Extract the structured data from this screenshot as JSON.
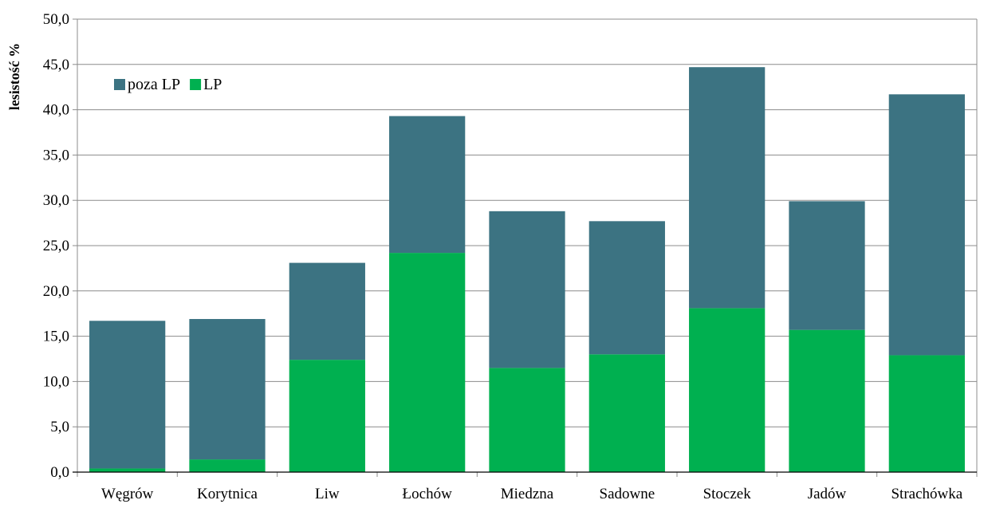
{
  "chart_data": {
    "type": "bar",
    "stacked": true,
    "ylabel": "lesistość %",
    "xlabel": "",
    "ylim": [
      0,
      50
    ],
    "ytick_step": 5,
    "yticks": [
      "0,0",
      "5,0",
      "10,0",
      "15,0",
      "20,0",
      "25,0",
      "30,0",
      "35,0",
      "40,0",
      "45,0",
      "50,0"
    ],
    "grid": true,
    "legend_position": "top-left",
    "categories": [
      "Węgrów",
      "Korytnica",
      "Liw",
      "Łochów",
      "Miedzna",
      "Sadowne",
      "Stoczek",
      "Jadów",
      "Strachówka"
    ],
    "series": [
      {
        "name": "LP",
        "color": "#00b050",
        "values": [
          0.4,
          1.4,
          12.4,
          24.2,
          11.5,
          13.0,
          18.1,
          15.7,
          12.9
        ]
      },
      {
        "name": "poza LP",
        "color": "#3c7382",
        "values": [
          16.3,
          15.5,
          10.7,
          15.1,
          17.3,
          14.7,
          26.6,
          14.2,
          28.8
        ]
      }
    ],
    "legend_order": [
      "poza LP",
      "LP"
    ]
  }
}
